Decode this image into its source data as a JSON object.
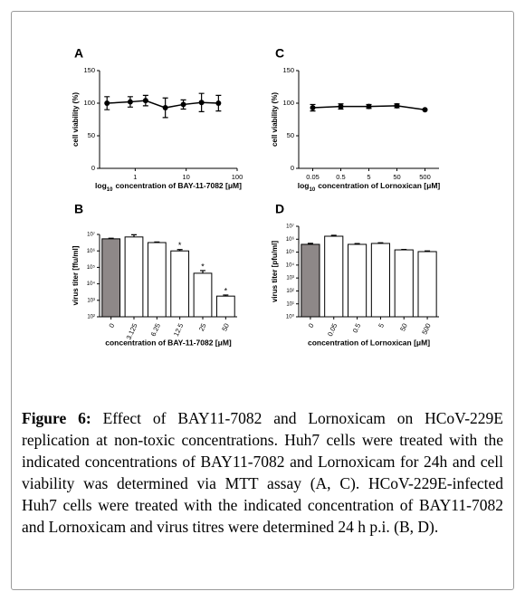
{
  "chart_data": [
    {
      "type": "line",
      "panel_label": "A",
      "ylabel": "cell viability (%)",
      "xlabel": {
        "base": "log",
        "subscript": "10",
        "text": "concentration of BAY-11-7082 [μM]"
      },
      "x": [
        0.28,
        0.8,
        1.6,
        3.9,
        8.8,
        20,
        43
      ],
      "log_x": true,
      "xlim": [
        0.2,
        100
      ],
      "xticks": [
        1,
        10,
        100
      ],
      "values": [
        100,
        102,
        104,
        93,
        98,
        101,
        100
      ],
      "errors": [
        10,
        8,
        8,
        15,
        7,
        14,
        12
      ],
      "ylim": [
        0,
        150
      ],
      "yticks": [
        0,
        50,
        100,
        150
      ],
      "color": "#000000"
    },
    {
      "type": "bar",
      "panel_label": "B",
      "ylabel": "virus titer [ffu/ml]",
      "xlabel": "concentration of BAY-11-7082 [μM]",
      "categories": [
        "0",
        "3.125",
        "6.25",
        "12.5",
        "25",
        "50"
      ],
      "values": [
        5400000,
        7000000,
        3200000,
        1000000,
        44000,
        1800
      ],
      "errors": [
        500000,
        2500000,
        300000,
        200000,
        20000,
        300
      ],
      "significance": [
        null,
        null,
        null,
        "*",
        "*",
        "*"
      ],
      "colors": [
        "#8e8888",
        "#ffffff",
        "#ffffff",
        "#ffffff",
        "#ffffff",
        "#ffffff"
      ],
      "log_y": true,
      "ylim": [
        100,
        10000000
      ],
      "yticks": [
        {
          "value": 100,
          "label": "10²"
        },
        {
          "value": 1000,
          "label": "10³"
        },
        {
          "value": 10000,
          "label": "10⁴"
        },
        {
          "value": 100000,
          "label": "10⁵"
        },
        {
          "value": 1000000,
          "label": "10⁶"
        },
        {
          "value": 10000000,
          "label": "10⁷"
        }
      ]
    },
    {
      "type": "line",
      "panel_label": "C",
      "ylabel": "cell viability (%)",
      "xlabel": {
        "base": "log",
        "subscript": "10",
        "text": "concentration of Lornoxican [μM]"
      },
      "categories": [
        "0.05",
        "0.5",
        "5",
        "50",
        "500"
      ],
      "values": [
        93,
        95,
        95,
        96,
        90
      ],
      "errors": [
        5,
        4,
        3,
        3,
        0
      ],
      "ylim": [
        0,
        150
      ],
      "yticks": [
        0,
        50,
        100,
        150
      ],
      "color": "#000000"
    },
    {
      "type": "bar",
      "panel_label": "D",
      "ylabel": "virus titer [pfu/ml]",
      "xlabel": "concentration of Lornoxican [μM]",
      "categories": [
        "0",
        "0.05",
        "0.5",
        "5",
        "50",
        "500"
      ],
      "values": [
        400000,
        1700000,
        400000,
        470000,
        150000,
        110000
      ],
      "errors": [
        80000,
        300000,
        60000,
        60000,
        10000,
        15000
      ],
      "colors": [
        "#8e8888",
        "#ffffff",
        "#ffffff",
        "#ffffff",
        "#ffffff",
        "#ffffff"
      ],
      "log_y": true,
      "ylim": [
        1,
        10000000
      ],
      "yticks": [
        {
          "value": 1,
          "label": "10⁰"
        },
        {
          "value": 10,
          "label": "10¹"
        },
        {
          "value": 100,
          "label": "10²"
        },
        {
          "value": 1000,
          "label": "10³"
        },
        {
          "value": 10000,
          "label": "10⁴"
        },
        {
          "value": 100000,
          "label": "10⁵"
        },
        {
          "value": 1000000,
          "label": "10⁶"
        },
        {
          "value": 10000000,
          "label": "10⁷"
        }
      ]
    }
  ],
  "caption": {
    "label": "Figure 6:",
    "text": "Effect of BAY11-7082 and Lornoxicam on HCoV-229E replication at non-toxic concentrations. Huh7 cells were treated with the indicated concentrations of BAY11-7082 and Lornoxicam for 24h and cell viability was determined via MTT assay (A, C). HCoV-229E-infected Huh7 cells were treated with the indicated concentration of BAY11-7082 and Lornoxicam and virus titres were determined 24 h p.i. (B, D)."
  }
}
